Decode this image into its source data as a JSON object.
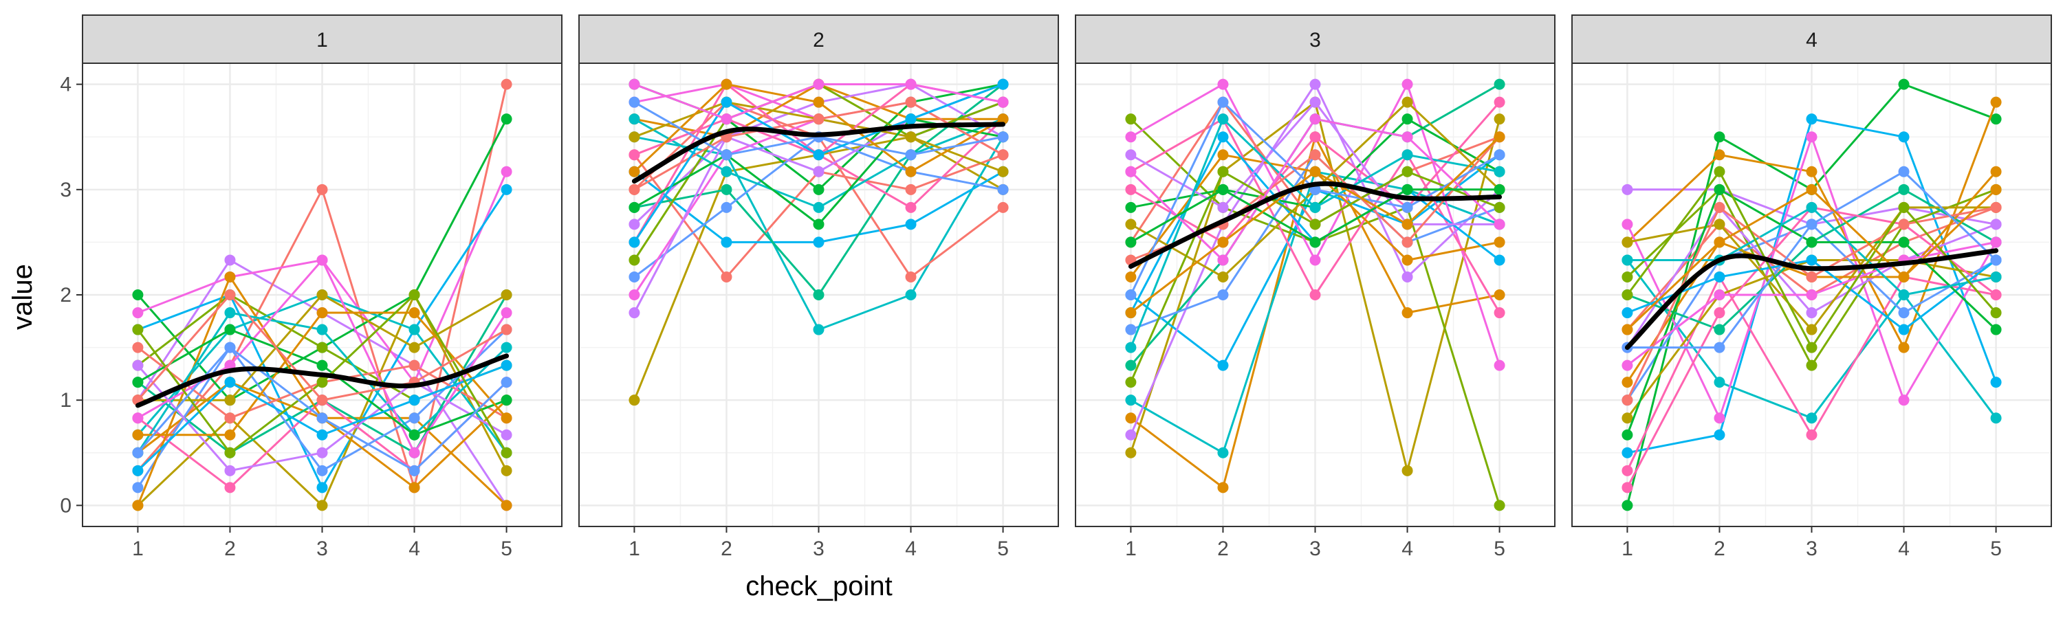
{
  "chart_data": {
    "type": "line",
    "xlabel": "check_point",
    "ylabel": "value",
    "facets": [
      "1",
      "2",
      "3",
      "4"
    ],
    "x_ticks": [
      "1",
      "2",
      "3",
      "4",
      "5"
    ],
    "y_ticks": [
      "0",
      "1",
      "2",
      "3",
      "4"
    ],
    "xlim": [
      0.4,
      5.6
    ],
    "ylim": [
      -0.2,
      4.2
    ],
    "grid": true,
    "legend": "none",
    "smooth_color": "#000000",
    "palette": [
      "#F8766D",
      "#DE8C00",
      "#B79F00",
      "#7CAE00",
      "#00BA38",
      "#00C08B",
      "#00BFC4",
      "#00B4F0",
      "#619CFF",
      "#C77CFF",
      "#F564E3",
      "#FF64B0"
    ],
    "panels": [
      {
        "facet": "1",
        "smooth": [
          0.95,
          1.28,
          1.24,
          1.14,
          1.42
        ],
        "series": [
          {
            "values": [
              1.0,
              2.33,
              1.83,
              1.33,
              0.0
            ],
            "color": "#C77CFF"
          },
          {
            "values": [
              0.33,
              1.33,
              3.0,
              0.17,
              4.0
            ],
            "color": "#F8766D"
          },
          {
            "values": [
              2.0,
              1.0,
              1.5,
              2.0,
              3.67
            ],
            "color": "#00BA38"
          },
          {
            "values": [
              1.83,
              2.17,
              2.33,
              1.17,
              3.17
            ],
            "color": "#F564E3"
          },
          {
            "values": [
              1.67,
              2.0,
              0.17,
              1.67,
              3.0
            ],
            "color": "#00B4F0"
          },
          {
            "values": [
              0.5,
              1.17,
              0.83,
              0.83,
              0.0
            ],
            "color": "#DE8C00"
          },
          {
            "values": [
              0.0,
              0.83,
              0.0,
              2.0,
              0.33
            ],
            "color": "#B79F00"
          },
          {
            "values": [
              1.17,
              0.5,
              1.0,
              0.5,
              2.0
            ],
            "color": "#00C08B"
          },
          {
            "values": [
              1.33,
              2.0,
              1.5,
              1.0,
              1.33
            ],
            "color": "#7CAE00"
          },
          {
            "values": [
              0.67,
              1.67,
              2.0,
              1.67,
              0.5
            ],
            "color": "#00BFC4"
          },
          {
            "values": [
              0.83,
              0.17,
              1.0,
              0.33,
              1.17
            ],
            "color": "#FF64B0"
          },
          {
            "values": [
              0.17,
              1.5,
              0.33,
              0.83,
              1.67
            ],
            "color": "#619CFF"
          },
          {
            "values": [
              1.5,
              0.83,
              1.17,
              1.33,
              0.83
            ],
            "color": "#F8766D"
          },
          {
            "values": [
              0.0,
              2.17,
              0.83,
              0.17,
              1.0
            ],
            "color": "#DE8C00"
          },
          {
            "values": [
              1.0,
              1.0,
              2.0,
              1.5,
              2.0
            ],
            "color": "#B79F00"
          },
          {
            "values": [
              0.5,
              1.83,
              1.67,
              0.67,
              1.5
            ],
            "color": "#00BFC4"
          },
          {
            "values": [
              1.33,
              0.33,
              0.5,
              1.17,
              0.67
            ],
            "color": "#C77CFF"
          },
          {
            "values": [
              0.83,
              1.33,
              2.33,
              0.5,
              1.83
            ],
            "color": "#F564E3"
          },
          {
            "values": [
              1.17,
              1.67,
              1.33,
              0.67,
              1.0
            ],
            "color": "#00BA38"
          },
          {
            "values": [
              0.67,
              0.67,
              1.83,
              1.83,
              0.83
            ],
            "color": "#DE8C00"
          },
          {
            "values": [
              0.33,
              1.17,
              0.67,
              1.0,
              1.33
            ],
            "color": "#00B4F0"
          },
          {
            "values": [
              1.67,
              0.5,
              1.17,
              2.0,
              0.5
            ],
            "color": "#7CAE00"
          },
          {
            "values": [
              1.0,
              2.0,
              1.0,
              1.17,
              1.67
            ],
            "color": "#F8766D"
          },
          {
            "values": [
              0.5,
              1.5,
              0.83,
              0.33,
              1.17
            ],
            "color": "#619CFF"
          }
        ]
      },
      {
        "facet": "2",
        "smooth": [
          3.08,
          3.55,
          3.52,
          3.6,
          3.62
        ],
        "series": [
          {
            "values": [
              1.0,
              3.17,
              3.33,
              3.5,
              3.0
            ],
            "color": "#B79F00"
          },
          {
            "values": [
              4.0,
              3.67,
              3.0,
              3.83,
              4.0
            ],
            "color": "#00BA38"
          },
          {
            "values": [
              3.83,
              4.0,
              3.67,
              3.5,
              3.83
            ],
            "color": "#F564E3"
          },
          {
            "values": [
              3.67,
              3.5,
              4.0,
              3.67,
              3.67
            ],
            "color": "#DE8C00"
          },
          {
            "values": [
              3.5,
              3.33,
              1.67,
              2.0,
              3.5
            ],
            "color": "#00BFC4"
          },
          {
            "values": [
              3.33,
              2.17,
              3.17,
              3.0,
              3.33
            ],
            "color": "#F8766D"
          },
          {
            "values": [
              3.17,
              2.5,
              2.5,
              2.67,
              3.17
            ],
            "color": "#00B4F0"
          },
          {
            "values": [
              3.0,
              3.83,
              3.5,
              2.17,
              2.83
            ],
            "color": "#F8766D"
          },
          {
            "values": [
              2.83,
              3.0,
              2.0,
              3.33,
              4.0
            ],
            "color": "#00C08B"
          },
          {
            "values": [
              2.67,
              3.5,
              3.83,
              4.0,
              3.5
            ],
            "color": "#C77CFF"
          },
          {
            "values": [
              2.5,
              4.0,
              3.33,
              2.83,
              3.67
            ],
            "color": "#FF64B0"
          },
          {
            "values": [
              2.33,
              3.67,
              4.0,
              3.5,
              3.83
            ],
            "color": "#7CAE00"
          },
          {
            "values": [
              2.17,
              2.83,
              3.5,
              3.17,
              3.0
            ],
            "color": "#619CFF"
          },
          {
            "values": [
              2.0,
              3.33,
              3.67,
              3.83,
              3.33
            ],
            "color": "#F564E3"
          },
          {
            "values": [
              1.83,
              3.5,
              3.17,
              3.67,
              4.0
            ],
            "color": "#C77CFF"
          },
          {
            "values": [
              3.67,
              3.17,
              2.83,
              3.33,
              3.67
            ],
            "color": "#00BFC4"
          },
          {
            "values": [
              3.5,
              3.83,
              3.67,
              3.5,
              3.17
            ],
            "color": "#B79F00"
          },
          {
            "values": [
              3.33,
              3.67,
              3.33,
              4.0,
              3.83
            ],
            "color": "#FF64B0"
          },
          {
            "values": [
              2.83,
              3.33,
              2.67,
              3.67,
              3.5
            ],
            "color": "#00BA38"
          },
          {
            "values": [
              3.17,
              4.0,
              3.83,
              3.17,
              3.67
            ],
            "color": "#DE8C00"
          },
          {
            "values": [
              3.0,
              3.5,
              3.67,
              3.83,
              3.33
            ],
            "color": "#F8766D"
          },
          {
            "values": [
              2.5,
              3.83,
              3.33,
              3.67,
              4.0
            ],
            "color": "#00B4F0"
          },
          {
            "values": [
              3.83,
              3.33,
              3.5,
              3.33,
              3.5
            ],
            "color": "#619CFF"
          },
          {
            "values": [
              4.0,
              3.67,
              4.0,
              4.0,
              3.83
            ],
            "color": "#F564E3"
          }
        ]
      },
      {
        "facet": "3",
        "smooth": [
          2.27,
          2.7,
          3.05,
          2.92,
          2.93
        ],
        "series": [
          {
            "values": [
              0.5,
              3.17,
              3.83,
              0.33,
              3.67
            ],
            "color": "#B79F00"
          },
          {
            "values": [
              0.83,
              0.17,
              3.5,
              1.83,
              2.0
            ],
            "color": "#DE8C00"
          },
          {
            "values": [
              1.0,
              0.5,
              3.17,
              3.0,
              2.67
            ],
            "color": "#00BFC4"
          },
          {
            "values": [
              3.67,
              2.83,
              2.5,
              2.83,
              0.0
            ],
            "color": "#7CAE00"
          },
          {
            "values": [
              2.0,
              1.33,
              3.0,
              2.67,
              3.33
            ],
            "color": "#00B4F0"
          },
          {
            "values": [
              3.5,
              4.0,
              2.33,
              4.0,
              1.33
            ],
            "color": "#F564E3"
          },
          {
            "values": [
              3.17,
              3.67,
              2.0,
              3.33,
              1.83
            ],
            "color": "#FF64B0"
          },
          {
            "values": [
              0.67,
              2.67,
              4.0,
              2.17,
              3.0
            ],
            "color": "#C77CFF"
          },
          {
            "values": [
              1.33,
              2.33,
              3.67,
              3.5,
              4.0
            ],
            "color": "#00C08B"
          },
          {
            "values": [
              2.5,
              3.83,
              2.67,
              3.17,
              3.5
            ],
            "color": "#F8766D"
          },
          {
            "values": [
              1.67,
              2.0,
              3.33,
              2.5,
              2.83
            ],
            "color": "#619CFF"
          },
          {
            "values": [
              2.83,
              3.0,
              2.83,
              3.67,
              3.17
            ],
            "color": "#00BA38"
          },
          {
            "values": [
              2.17,
              3.33,
              3.17,
              2.33,
              2.5
            ],
            "color": "#DE8C00"
          },
          {
            "values": [
              3.0,
              2.5,
              3.5,
              2.83,
              3.83
            ],
            "color": "#FF64B0"
          },
          {
            "values": [
              1.83,
              3.5,
              2.5,
              3.0,
              2.33
            ],
            "color": "#00B4F0"
          },
          {
            "values": [
              2.67,
              2.17,
              3.0,
              3.83,
              3.0
            ],
            "color": "#B79F00"
          },
          {
            "values": [
              3.33,
              2.83,
              3.83,
              2.67,
              2.67
            ],
            "color": "#C77CFF"
          },
          {
            "values": [
              1.5,
              3.67,
              2.83,
              3.33,
              3.17
            ],
            "color": "#00BFC4"
          },
          {
            "values": [
              2.33,
              2.67,
              3.33,
              2.5,
              3.5
            ],
            "color": "#F8766D"
          },
          {
            "values": [
              1.17,
              3.17,
              2.67,
              3.17,
              2.83
            ],
            "color": "#7CAE00"
          },
          {
            "values": [
              2.0,
              3.83,
              3.0,
              2.83,
              3.33
            ],
            "color": "#619CFF"
          },
          {
            "values": [
              3.17,
              2.33,
              3.67,
              3.5,
              2.67
            ],
            "color": "#F564E3"
          },
          {
            "values": [
              2.5,
              3.0,
              2.5,
              3.0,
              3.0
            ],
            "color": "#00BA38"
          },
          {
            "values": [
              1.83,
              2.5,
              3.17,
              2.67,
              3.5
            ],
            "color": "#DE8C00"
          }
        ]
      },
      {
        "facet": "4",
        "smooth": [
          1.5,
          2.33,
          2.25,
          2.3,
          2.42
        ],
        "series": [
          {
            "values": [
              3.0,
              3.0,
              2.67,
              2.83,
              2.67
            ],
            "color": "#C77CFF"
          },
          {
            "values": [
              0.0,
              3.5,
              3.0,
              4.0,
              3.67
            ],
            "color": "#00BA38"
          },
          {
            "values": [
              0.5,
              0.67,
              3.67,
              3.5,
              1.17
            ],
            "color": "#00B4F0"
          },
          {
            "values": [
              2.5,
              3.33,
              3.17,
              1.5,
              3.83
            ],
            "color": "#DE8C00"
          },
          {
            "values": [
              2.33,
              1.17,
              0.83,
              2.0,
              0.83
            ],
            "color": "#00BFC4"
          },
          {
            "values": [
              2.67,
              0.83,
              3.5,
              1.0,
              2.5
            ],
            "color": "#F564E3"
          },
          {
            "values": [
              0.33,
              2.17,
              0.67,
              2.17,
              2.0
            ],
            "color": "#FF64B0"
          },
          {
            "values": [
              1.67,
              2.67,
              2.0,
              2.5,
              2.83
            ],
            "color": "#F8766D"
          },
          {
            "values": [
              0.83,
              2.0,
              2.33,
              2.33,
              2.17
            ],
            "color": "#B79F00"
          },
          {
            "values": [
              2.17,
              3.0,
              1.33,
              2.67,
              3.0
            ],
            "color": "#7CAE00"
          },
          {
            "values": [
              1.0,
              2.33,
              2.67,
              1.83,
              2.33
            ],
            "color": "#619CFF"
          },
          {
            "values": [
              1.5,
              2.83,
              1.83,
              2.33,
              2.67
            ],
            "color": "#C77CFF"
          },
          {
            "values": [
              2.0,
              1.67,
              2.5,
              3.0,
              2.5
            ],
            "color": "#00C08B"
          },
          {
            "values": [
              1.17,
              2.5,
              2.17,
              2.17,
              3.17
            ],
            "color": "#DE8C00"
          },
          {
            "values": [
              0.17,
              1.83,
              2.83,
              2.67,
              2.0
            ],
            "color": "#FF64B0"
          },
          {
            "values": [
              1.83,
              2.17,
              2.33,
              1.67,
              2.33
            ],
            "color": "#00B4F0"
          },
          {
            "values": [
              2.5,
              2.67,
              1.67,
              2.83,
              2.83
            ],
            "color": "#B79F00"
          },
          {
            "values": [
              0.67,
              3.0,
              2.5,
              2.5,
              1.67
            ],
            "color": "#00BA38"
          },
          {
            "values": [
              1.33,
              2.0,
              2.0,
              2.33,
              2.5
            ],
            "color": "#F564E3"
          },
          {
            "values": [
              2.33,
              2.33,
              2.83,
              2.0,
              2.17
            ],
            "color": "#00BFC4"
          },
          {
            "values": [
              1.0,
              2.83,
              2.17,
              2.67,
              2.83
            ],
            "color": "#F8766D"
          },
          {
            "values": [
              1.5,
              1.5,
              2.67,
              3.17,
              2.33
            ],
            "color": "#619CFF"
          },
          {
            "values": [
              2.0,
              3.17,
              1.5,
              2.83,
              1.83
            ],
            "color": "#7CAE00"
          },
          {
            "values": [
              1.67,
              2.5,
              3.0,
              2.17,
              3.0
            ],
            "color": "#DE8C00"
          }
        ]
      }
    ]
  }
}
